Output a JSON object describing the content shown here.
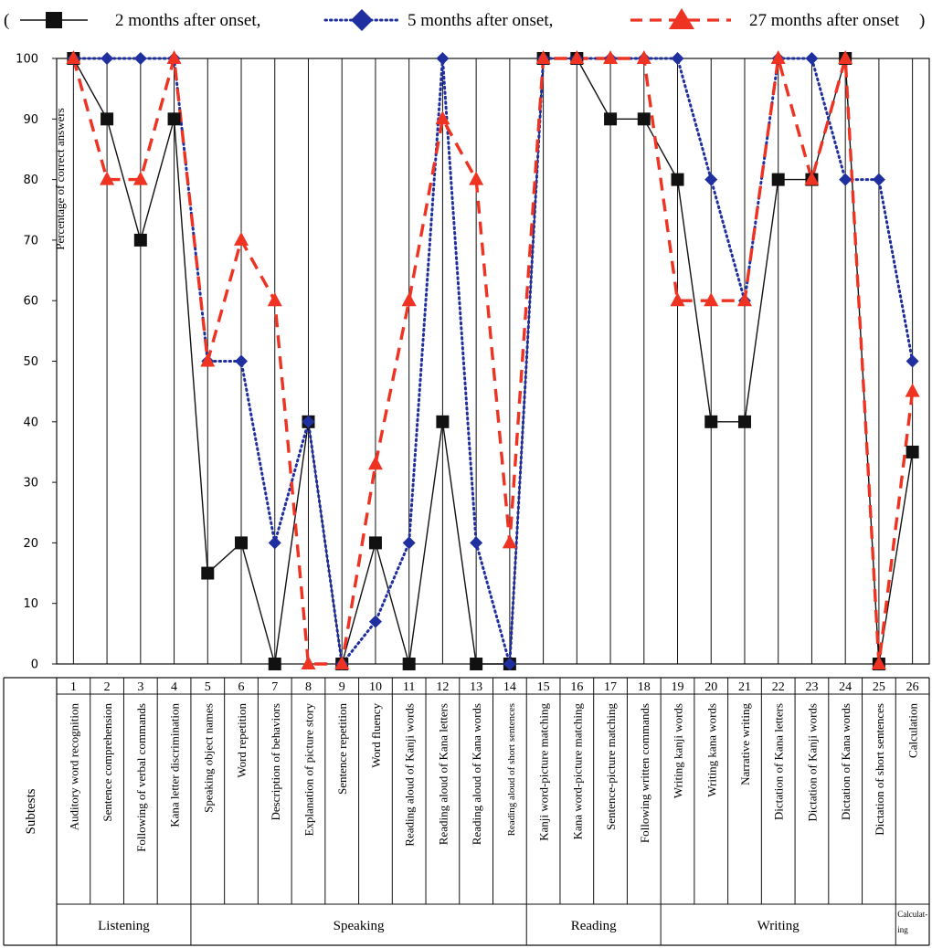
{
  "legend": {
    "open": "(",
    "close": ")",
    "items": [
      {
        "label": "2 months after onset,",
        "color": "#111111",
        "marker": "square",
        "dash": "solid"
      },
      {
        "label": "5 months after onset,",
        "color": "#1f2fa0",
        "marker": "diamond",
        "dash": "dotted"
      },
      {
        "label": "27 months after onset",
        "color": "#ee3322",
        "marker": "triangle",
        "dash": "dashed"
      }
    ]
  },
  "chart_data": {
    "type": "line",
    "ylabel": "Percentage of correct answers",
    "ylim": [
      0,
      100
    ],
    "yticks": [
      0,
      10,
      20,
      30,
      40,
      50,
      60,
      70,
      80,
      90,
      100
    ],
    "grid": "vertical",
    "x": [
      1,
      2,
      3,
      4,
      5,
      6,
      7,
      8,
      9,
      10,
      11,
      12,
      13,
      14,
      15,
      16,
      17,
      18,
      19,
      20,
      21,
      22,
      23,
      24,
      25,
      26
    ],
    "series": [
      {
        "name": "2 months after onset",
        "values": [
          100,
          90,
          70,
          90,
          15,
          20,
          0,
          40,
          0,
          20,
          0,
          40,
          0,
          0,
          100,
          100,
          90,
          90,
          80,
          40,
          40,
          80,
          80,
          100,
          0,
          35
        ]
      },
      {
        "name": "5 months after onset",
        "values": [
          100,
          100,
          100,
          100,
          50,
          50,
          20,
          40,
          0,
          7,
          20,
          100,
          20,
          0,
          100,
          100,
          100,
          100,
          100,
          80,
          60,
          100,
          100,
          80,
          80,
          50
        ]
      },
      {
        "name": "27 months after onset",
        "values": [
          100,
          80,
          80,
          100,
          50,
          70,
          60,
          0,
          0,
          33,
          60,
          90,
          80,
          20,
          100,
          100,
          100,
          100,
          60,
          60,
          60,
          100,
          80,
          100,
          0,
          45
        ]
      }
    ]
  },
  "table": {
    "header_label": "Subtests",
    "subtests": [
      {
        "num": "1",
        "name": "Auditory word recognition"
      },
      {
        "num": "2",
        "name": "Sentence comprehension"
      },
      {
        "num": "3",
        "name": "Following of verbal commands"
      },
      {
        "num": "4",
        "name": "Kana letter discrimination"
      },
      {
        "num": "5",
        "name": "Speaking object names"
      },
      {
        "num": "6",
        "name": "Word repetition"
      },
      {
        "num": "7",
        "name": "Description of behaviors"
      },
      {
        "num": "8",
        "name": "Explanation of picture story"
      },
      {
        "num": "9",
        "name": "Sentence repetition"
      },
      {
        "num": "10",
        "name": "Word fluency"
      },
      {
        "num": "11",
        "name": "Reading aloud of Kanji words"
      },
      {
        "num": "12",
        "name": "Reading aloud of Kana letters"
      },
      {
        "num": "13",
        "name": "Reading aloud of Kana words"
      },
      {
        "num": "14",
        "name": "Reading aloud of short sentences"
      },
      {
        "num": "15",
        "name": "Kanji word-picture matching"
      },
      {
        "num": "16",
        "name": "Kana word-picture matching"
      },
      {
        "num": "17",
        "name": "Sentence-picture matching"
      },
      {
        "num": "18",
        "name": "Following written commands"
      },
      {
        "num": "19",
        "name": "Writing kanji words"
      },
      {
        "num": "20",
        "name": "Writing kana words"
      },
      {
        "num": "21",
        "name": "Narrative writing"
      },
      {
        "num": "22",
        "name": "Dictation of Kana letters"
      },
      {
        "num": "23",
        "name": "Dictation of Kanji words"
      },
      {
        "num": "24",
        "name": "Dictation of Kana words"
      },
      {
        "num": "25",
        "name": "Dictation of short sentences"
      },
      {
        "num": "26",
        "name": "Calculation"
      }
    ],
    "groups": [
      {
        "label": "Listening",
        "from": 1,
        "to": 4
      },
      {
        "label": "Speaking",
        "from": 5,
        "to": 14
      },
      {
        "label": "Reading",
        "from": 15,
        "to": 18
      },
      {
        "label": "Writing",
        "from": 19,
        "to": 25
      },
      {
        "label": "Calculat-ing",
        "from": 26,
        "to": 26
      }
    ]
  }
}
